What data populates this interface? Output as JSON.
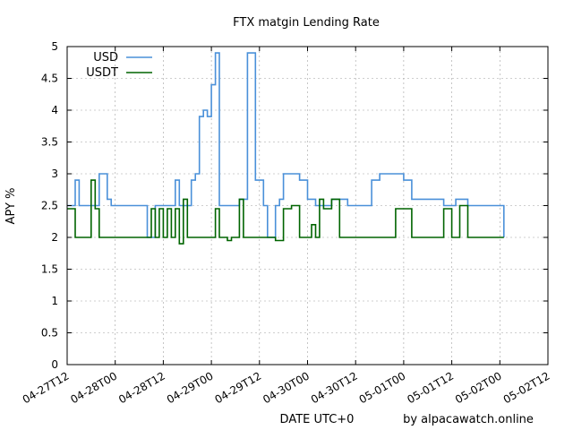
{
  "chart_data": {
    "type": "line",
    "title": "FTX matgin Lending Rate",
    "xlabel": "DATE UTC+0",
    "ylabel": "APY %",
    "credit": "by alpacawatch.online",
    "ylim": [
      0,
      5
    ],
    "yticks": [
      "0",
      "0.5",
      "1",
      "1.5",
      "2",
      "2.5",
      "3",
      "3.5",
      "4",
      "4.5",
      "5"
    ],
    "xlim": [
      "2022-04-27T12:00",
      "2022-05-02T12:00"
    ],
    "xticks": [
      "04-27T12",
      "04-28T00",
      "04-28T12",
      "04-29T00",
      "04-29T12",
      "04-30T00",
      "04-30T12",
      "05-01T00",
      "05-01T12",
      "05-02T00",
      "05-02T12"
    ],
    "grid": true,
    "legend_position": "top-left",
    "series": [
      {
        "name": "USD",
        "color": "#4a90d9",
        "x": [
          "2022-04-27T12:00",
          "2022-04-27T13:00",
          "2022-04-27T14:00",
          "2022-04-27T15:00",
          "2022-04-27T17:00",
          "2022-04-27T18:00",
          "2022-04-27T20:00",
          "2022-04-27T22:00",
          "2022-04-27T23:00",
          "2022-04-28T00:00",
          "2022-04-28T01:00",
          "2022-04-28T03:00",
          "2022-04-28T05:00",
          "2022-04-28T07:00",
          "2022-04-28T08:00",
          "2022-04-28T10:00",
          "2022-04-28T11:00",
          "2022-04-28T12:00",
          "2022-04-28T13:00",
          "2022-04-28T14:00",
          "2022-04-28T15:00",
          "2022-04-28T16:00",
          "2022-04-28T18:00",
          "2022-04-28T19:00",
          "2022-04-28T20:00",
          "2022-04-28T21:00",
          "2022-04-28T22:00",
          "2022-04-28T23:00",
          "2022-04-29T00:00",
          "2022-04-29T01:00",
          "2022-04-29T02:00",
          "2022-04-29T04:00",
          "2022-04-29T06:00",
          "2022-04-29T07:00",
          "2022-04-29T08:00",
          "2022-04-29T09:00",
          "2022-04-29T10:00",
          "2022-04-29T11:00",
          "2022-04-29T12:00",
          "2022-04-29T13:00",
          "2022-04-29T14:00",
          "2022-04-29T16:00",
          "2022-04-29T17:00",
          "2022-04-29T18:00",
          "2022-04-29T20:00",
          "2022-04-29T22:00",
          "2022-04-30T00:00",
          "2022-04-30T02:00",
          "2022-04-30T04:00",
          "2022-04-30T06:00",
          "2022-04-30T08:00",
          "2022-04-30T10:00",
          "2022-04-30T12:00",
          "2022-04-30T14:00",
          "2022-04-30T16:00",
          "2022-04-30T18:00",
          "2022-04-30T21:00",
          "2022-05-01T00:00",
          "2022-05-01T02:00",
          "2022-05-01T04:00",
          "2022-05-01T06:00",
          "2022-05-01T08:00",
          "2022-05-01T10:00",
          "2022-05-01T13:00",
          "2022-05-01T15:00",
          "2022-05-01T16:00",
          "2022-05-01T18:00",
          "2022-05-01T20:00",
          "2022-05-01T22:00",
          "2022-05-02T00:00",
          "2022-05-02T01:00"
        ],
        "values": [
          2.5,
          2.5,
          2.9,
          2.5,
          2.5,
          2.5,
          3.0,
          2.6,
          2.5,
          2.5,
          2.5,
          2.5,
          2.5,
          2.5,
          2.0,
          2.5,
          2.5,
          2.5,
          2.5,
          2.5,
          2.9,
          2.5,
          2.5,
          2.9,
          3.0,
          3.9,
          4.0,
          3.9,
          4.4,
          4.9,
          2.5,
          2.5,
          2.5,
          2.6,
          2.6,
          4.9,
          4.9,
          2.9,
          2.9,
          2.5,
          2.0,
          2.5,
          2.6,
          3.0,
          3.0,
          2.9,
          2.6,
          2.5,
          2.5,
          2.6,
          2.6,
          2.5,
          2.5,
          2.5,
          2.9,
          3.0,
          3.0,
          2.9,
          2.6,
          2.6,
          2.6,
          2.6,
          2.5,
          2.6,
          2.6,
          2.5,
          2.5,
          2.5,
          2.5,
          2.5,
          2.0
        ]
      },
      {
        "name": "USDT",
        "color": "#006400",
        "x": [
          "2022-04-27T12:00",
          "2022-04-27T13:00",
          "2022-04-27T14:00",
          "2022-04-27T15:00",
          "2022-04-27T17:00",
          "2022-04-27T18:00",
          "2022-04-27T19:00",
          "2022-04-27T20:00",
          "2022-04-27T22:00",
          "2022-04-28T00:00",
          "2022-04-28T02:00",
          "2022-04-28T04:00",
          "2022-04-28T06:00",
          "2022-04-28T08:00",
          "2022-04-28T09:00",
          "2022-04-28T10:00",
          "2022-04-28T11:00",
          "2022-04-28T12:00",
          "2022-04-28T13:00",
          "2022-04-28T14:00",
          "2022-04-28T15:00",
          "2022-04-28T16:00",
          "2022-04-28T17:00",
          "2022-04-28T18:00",
          "2022-04-28T19:00",
          "2022-04-28T20:00",
          "2022-04-28T22:00",
          "2022-04-29T00:00",
          "2022-04-29T01:00",
          "2022-04-29T02:00",
          "2022-04-29T03:00",
          "2022-04-29T04:00",
          "2022-04-29T05:00",
          "2022-04-29T06:00",
          "2022-04-29T07:00",
          "2022-04-29T08:00",
          "2022-04-29T10:00",
          "2022-04-29T12:00",
          "2022-04-29T14:00",
          "2022-04-29T16:00",
          "2022-04-29T18:00",
          "2022-04-29T20:00",
          "2022-04-29T22:00",
          "2022-04-30T00:00",
          "2022-04-30T01:00",
          "2022-04-30T02:00",
          "2022-04-30T03:00",
          "2022-04-30T04:00",
          "2022-04-30T06:00",
          "2022-04-30T08:00",
          "2022-04-30T10:00",
          "2022-04-30T12:00",
          "2022-04-30T14:00",
          "2022-04-30T15:00",
          "2022-04-30T16:00",
          "2022-04-30T18:00",
          "2022-04-30T20:00",
          "2022-04-30T22:00",
          "2022-05-01T00:00",
          "2022-05-01T02:00",
          "2022-05-01T04:00",
          "2022-05-01T06:00",
          "2022-05-01T08:00",
          "2022-05-01T10:00",
          "2022-05-01T12:00",
          "2022-05-01T14:00",
          "2022-05-01T16:00",
          "2022-05-01T18:00",
          "2022-05-01T20:00",
          "2022-05-01T21:00",
          "2022-05-01T22:00",
          "2022-05-02T00:00",
          "2022-05-02T01:00"
        ],
        "values": [
          2.45,
          2.45,
          2.0,
          2.0,
          2.0,
          2.9,
          2.45,
          2.0,
          2.0,
          2.0,
          2.0,
          2.0,
          2.0,
          2.0,
          2.45,
          2.0,
          2.45,
          2.0,
          2.45,
          2.0,
          2.45,
          1.9,
          2.6,
          2.0,
          2.0,
          2.0,
          2.0,
          2.0,
          2.45,
          2.0,
          2.0,
          1.95,
          2.0,
          2.0,
          2.6,
          2.0,
          2.0,
          2.0,
          2.0,
          1.95,
          2.45,
          2.5,
          2.0,
          2.0,
          2.2,
          2.0,
          2.6,
          2.45,
          2.6,
          2.0,
          2.0,
          2.0,
          2.0,
          2.0,
          2.0,
          2.0,
          2.0,
          2.45,
          2.45,
          2.0,
          2.0,
          2.0,
          2.0,
          2.45,
          2.0,
          2.5,
          2.0,
          2.0,
          2.0,
          2.0,
          2.0,
          2.0,
          2.0
        ]
      }
    ]
  }
}
